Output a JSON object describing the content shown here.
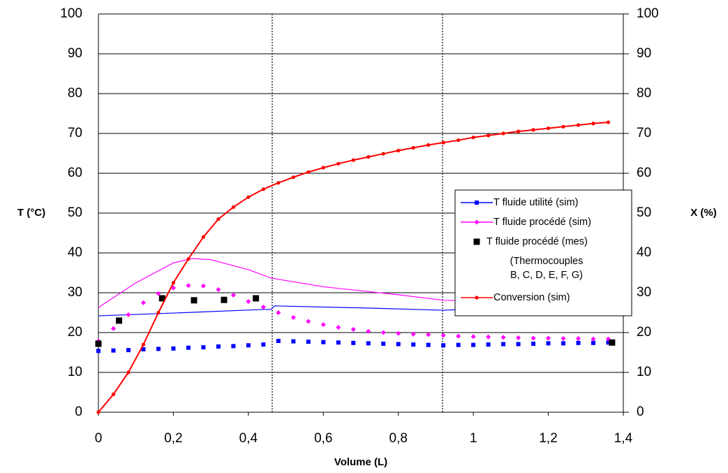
{
  "chart_data": {
    "type": "line",
    "xlabel": "Volume (L)",
    "ylabel": "T (°C)",
    "y2label": "X (%)",
    "xlim": [
      0,
      1.4
    ],
    "ylim": [
      0,
      100
    ],
    "y2lim": [
      0,
      100
    ],
    "xticks": [
      0,
      {
        "value": 0.2,
        "label": "0,2"
      },
      {
        "value": 0.4,
        "label": "0,4"
      },
      {
        "value": 0.6,
        "label": "0,6"
      },
      {
        "value": 0.8,
        "label": "0,8"
      },
      1,
      {
        "value": 1.2,
        "label": "1,2"
      },
      {
        "value": 1.4,
        "label": "1,4"
      }
    ],
    "yticks": [
      0,
      10,
      20,
      30,
      40,
      50,
      60,
      70,
      80,
      90,
      100
    ],
    "y2ticks": [
      0,
      10,
      20,
      30,
      40,
      50,
      60,
      70,
      80,
      90,
      100
    ],
    "grid": true,
    "series": [
      {
        "color": "#0000ff",
        "line": true,
        "marker": "none",
        "x": [
          0,
          0.2,
          0.44,
          0.46,
          0.47,
          0.7,
          0.92,
          1.0
        ],
        "values": [
          24.2,
          24.9,
          25.8,
          25.8,
          26.7,
          26.2,
          25.6,
          25.9
        ]
      },
      {
        "color": "#ff00ff",
        "line": true,
        "marker": "none",
        "x": [
          0,
          0.1,
          0.2,
          0.25,
          0.3,
          0.4,
          0.46,
          0.6,
          0.8,
          0.92,
          1.0
        ],
        "values": [
          26.3,
          32.5,
          37.5,
          38.6,
          38.3,
          35.8,
          33.7,
          31.5,
          29.5,
          28.1,
          28
        ]
      },
      {
        "name": "T fluide utilité (sim)",
        "color": "#0000ff",
        "line": false,
        "marker": "square",
        "x": [
          0,
          0.04,
          0.08,
          0.12,
          0.16,
          0.2,
          0.24,
          0.28,
          0.32,
          0.36,
          0.4,
          0.44,
          0.48,
          0.52,
          0.56,
          0.6,
          0.64,
          0.68,
          0.72,
          0.76,
          0.8,
          0.84,
          0.88,
          0.92,
          0.96,
          1.0,
          1.04,
          1.08,
          1.12,
          1.16,
          1.2,
          1.24,
          1.28,
          1.32,
          1.36
        ],
        "values": [
          15.4,
          15.5,
          15.6,
          15.8,
          15.9,
          16.0,
          16.2,
          16.3,
          16.5,
          16.6,
          16.8,
          17.0,
          17.9,
          17.8,
          17.7,
          17.6,
          17.5,
          17.4,
          17.3,
          17.2,
          17.1,
          17.0,
          16.9,
          16.8,
          16.9,
          16.9,
          17.0,
          17.1,
          17.1,
          17.2,
          17.3,
          17.3,
          17.4,
          17.4,
          17.5
        ]
      },
      {
        "name": "T fluide procédé (sim)",
        "color": "#ff00ff",
        "line": false,
        "marker": "diamond",
        "x": [
          0,
          0.04,
          0.08,
          0.12,
          0.16,
          0.2,
          0.24,
          0.28,
          0.32,
          0.36,
          0.4,
          0.44,
          0.48,
          0.52,
          0.56,
          0.6,
          0.64,
          0.68,
          0.72,
          0.76,
          0.8,
          0.84,
          0.88,
          0.92,
          0.96,
          1.0,
          1.04,
          1.08,
          1.12,
          1.16,
          1.2,
          1.24,
          1.28,
          1.32,
          1.36
        ],
        "values": [
          17.9,
          21,
          24.5,
          27.5,
          29.8,
          31.2,
          31.8,
          31.7,
          30.8,
          29.4,
          27.8,
          26.4,
          25,
          23.8,
          22.8,
          22,
          21.3,
          20.8,
          20.3,
          20,
          19.8,
          19.6,
          19.5,
          19.3,
          19.1,
          19,
          18.9,
          18.8,
          18.7,
          18.6,
          18.6,
          18.5,
          18.5,
          18.4,
          18.4
        ]
      },
      {
        "name": "T fluide procédé (mes)",
        "note": [
          "(Thermocouples",
          "B, C, D, E, F, G)"
        ],
        "color": "#000000",
        "line": false,
        "marker": "bigsquare",
        "x": [
          0,
          0.055,
          0.17,
          0.255,
          0.335,
          0.42,
          1.37
        ],
        "values": [
          17.2,
          23,
          28.6,
          28.1,
          28.2,
          28.6,
          17.5
        ]
      },
      {
        "name": "Conversion (sim)",
        "color": "#ff0000",
        "line": true,
        "marker": "circle",
        "axis": "y2",
        "x": [
          0,
          0.04,
          0.08,
          0.12,
          0.16,
          0.2,
          0.24,
          0.28,
          0.32,
          0.36,
          0.4,
          0.44,
          0.48,
          0.52,
          0.56,
          0.6,
          0.64,
          0.68,
          0.72,
          0.76,
          0.8,
          0.84,
          0.88,
          0.92,
          0.96,
          1.0,
          1.04,
          1.08,
          1.12,
          1.16,
          1.2,
          1.24,
          1.28,
          1.32,
          1.36
        ],
        "values": [
          0,
          4.5,
          10,
          17,
          25,
          32.5,
          38.5,
          44,
          48.5,
          51.5,
          54,
          56,
          57.6,
          59,
          60.3,
          61.4,
          62.4,
          63.3,
          64.1,
          64.9,
          65.7,
          66.4,
          67.1,
          67.7,
          68.3,
          69,
          69.5,
          70,
          70.5,
          70.9,
          71.3,
          71.7,
          72.1,
          72.5,
          72.8
        ]
      }
    ]
  }
}
